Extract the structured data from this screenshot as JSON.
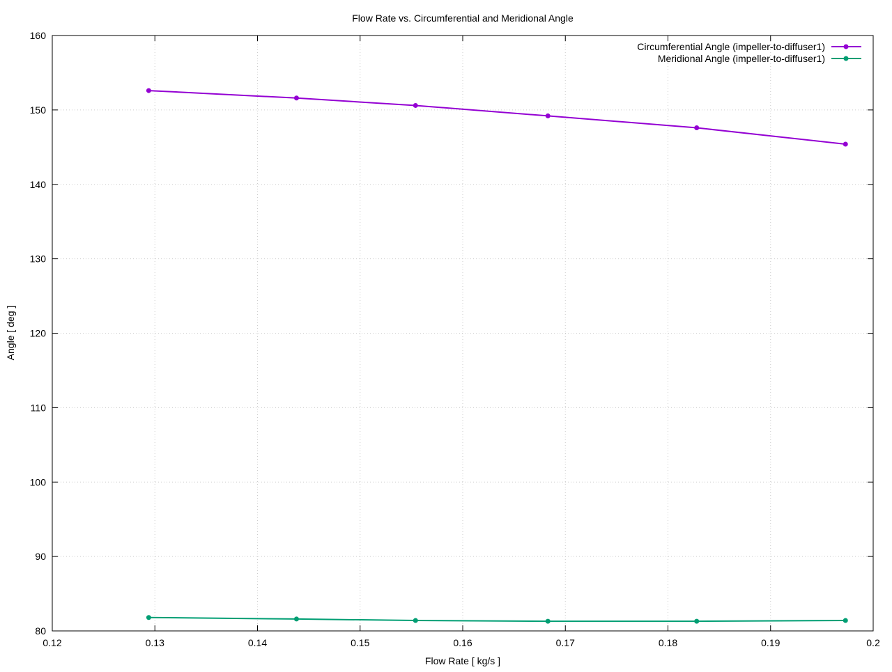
{
  "chart_data": {
    "type": "line",
    "title": "Flow Rate vs. Circumferential and Meridional Angle",
    "xlabel": "Flow Rate [ kg/s ]",
    "ylabel": "Angle [ deg ]",
    "xlim": [
      0.12,
      0.2
    ],
    "ylim": [
      80,
      160
    ],
    "xticks": [
      "0.12",
      "0.13",
      "0.14",
      "0.15",
      "0.16",
      "0.17",
      "0.18",
      "0.19",
      "0.2"
    ],
    "yticks": [
      "80",
      "90",
      "100",
      "110",
      "120",
      "130",
      "140",
      "150",
      "160"
    ],
    "grid": true,
    "legend_position": "top-right",
    "x": [
      0.1294,
      0.1438,
      0.1554,
      0.1683,
      0.1828,
      0.1973
    ],
    "series": [
      {
        "name": "Circumferential Angle (impeller-to-diffuser1)",
        "color": "#9400d3",
        "values": [
          152.6,
          151.6,
          150.6,
          149.2,
          147.6,
          145.4
        ]
      },
      {
        "name": "Meridional Angle (impeller-to-diffuser1)",
        "color": "#009e73",
        "values": [
          81.8,
          81.6,
          81.4,
          81.3,
          81.3,
          81.4
        ]
      }
    ]
  }
}
